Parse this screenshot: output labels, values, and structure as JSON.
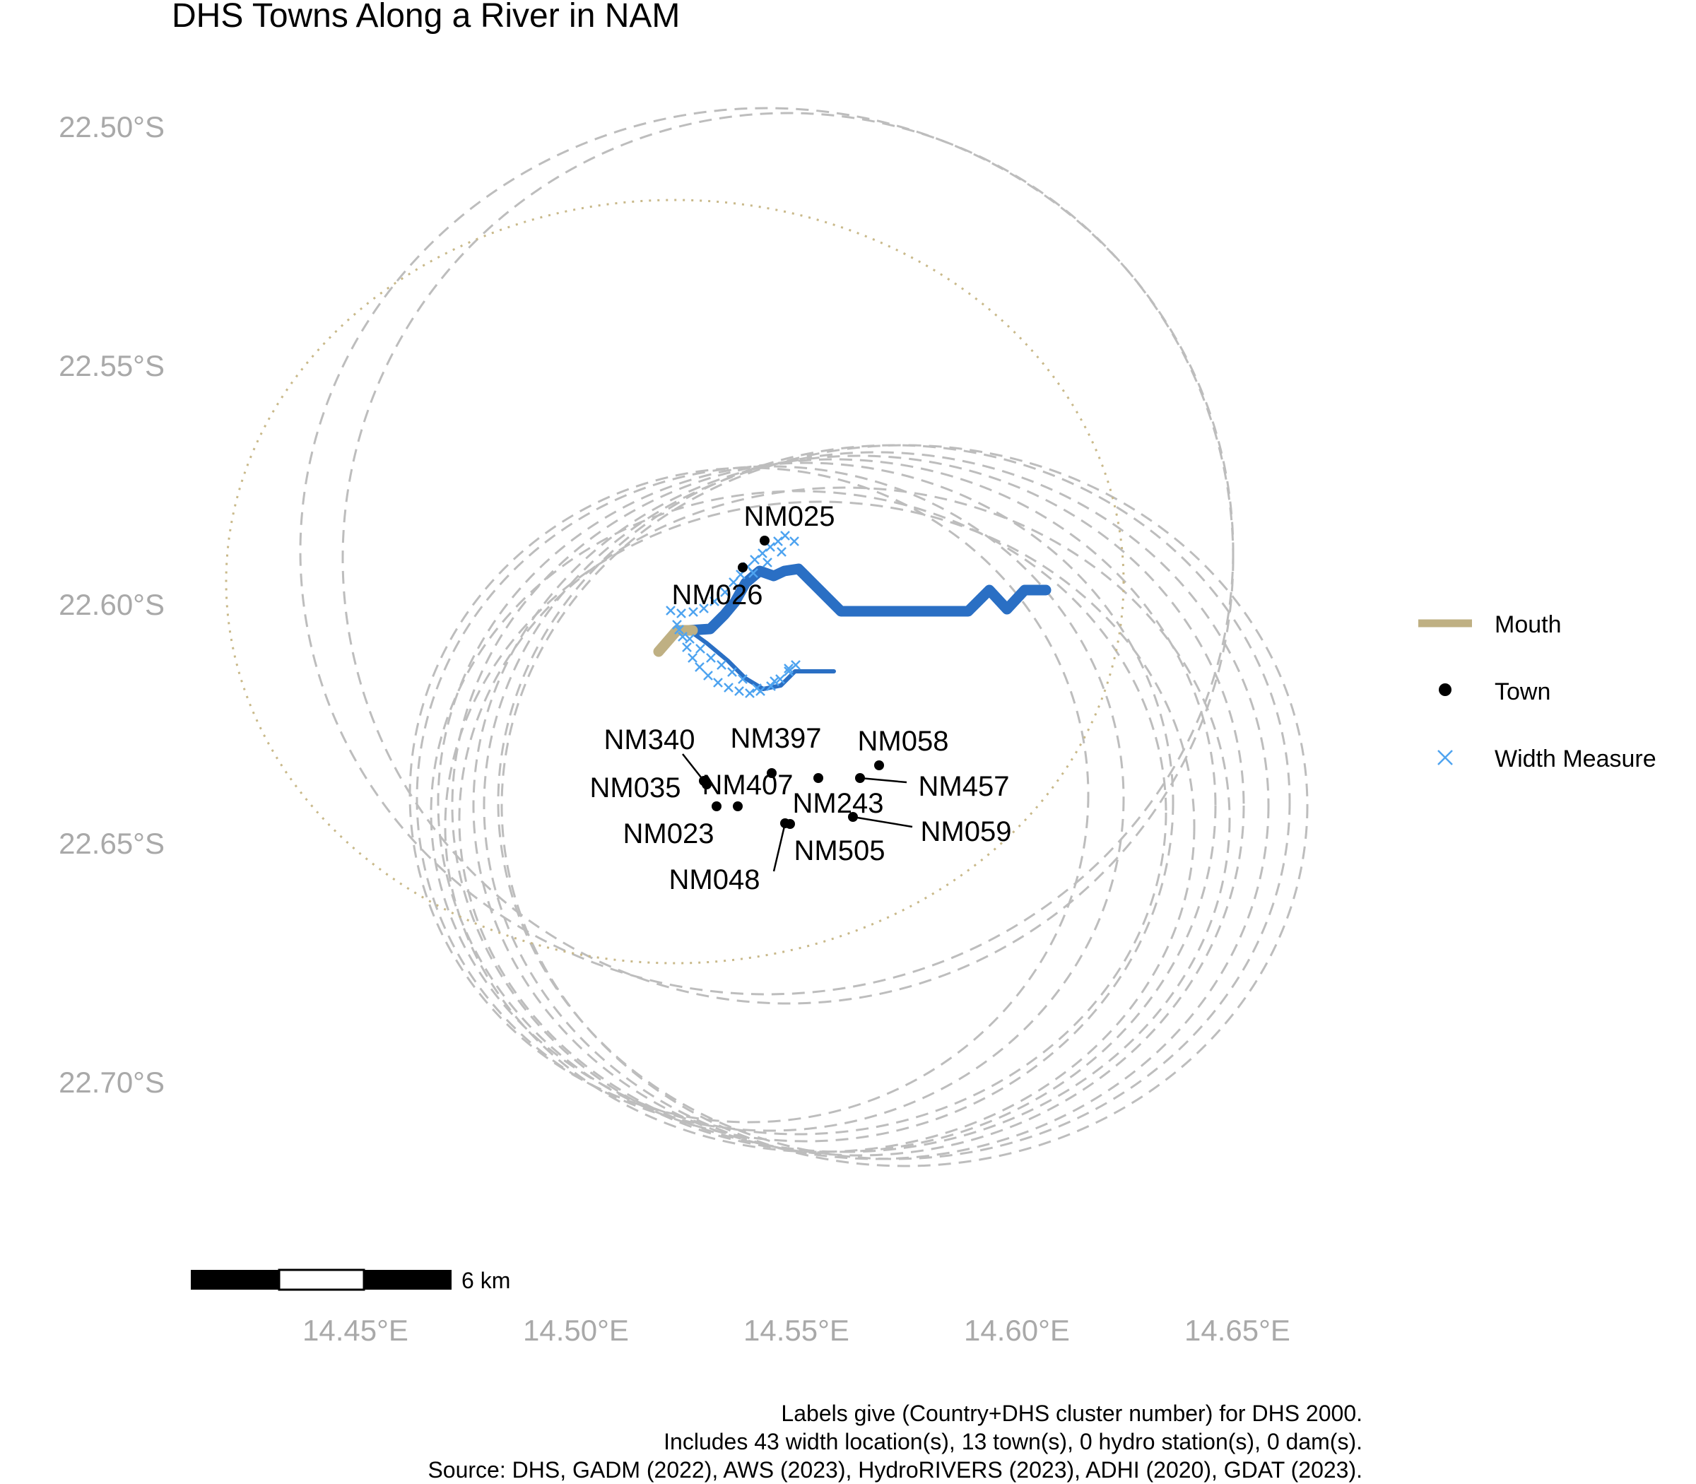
{
  "title": "DHS Towns Along a River in NAM",
  "axes": {
    "x_ticks": [
      "14.45°E",
      "14.50°E",
      "14.55°E",
      "14.60°E",
      "14.65°E"
    ],
    "y_ticks": [
      "22.50°S",
      "22.55°S",
      "22.60°S",
      "22.65°S",
      "22.70°S"
    ]
  },
  "legend": {
    "mouth": "Mouth",
    "town": "Town",
    "width": "Width Measure",
    "placement": "right"
  },
  "towns": [
    {
      "label": "NM025",
      "lon": 14.543,
      "lat": -22.586
    },
    {
      "label": "NM026",
      "lon": 14.538,
      "lat": -22.591
    },
    {
      "label": "NM340",
      "lon": 14.529,
      "lat": -22.636
    },
    {
      "label": "NM035",
      "lon": 14.528,
      "lat": -22.637
    },
    {
      "label": "NM023",
      "lon": 14.532,
      "lat": -22.642
    },
    {
      "label": "NM397",
      "lon": 14.545,
      "lat": -22.634
    },
    {
      "label": "NM407",
      "lon": 14.555,
      "lat": -22.635
    },
    {
      "label": "NM058",
      "lon": 14.568,
      "lat": -22.633
    },
    {
      "label": "NM457",
      "lon": 14.563,
      "lat": -22.635
    },
    {
      "label": "NM243",
      "lon": 14.564,
      "lat": -22.643
    },
    {
      "label": "NM059",
      "lon": 14.562,
      "lat": -22.643
    },
    {
      "label": "NM505",
      "lon": 14.547,
      "lat": -22.645
    },
    {
      "label": "NM048",
      "lon": 14.548,
      "lat": -22.645
    }
  ],
  "scale_bar": {
    "label": "6 km"
  },
  "caption": [
    "Labels give (Country+DHS cluster number) for DHS 2000.",
    "Includes 43 width location(s), 13 town(s), 0 hydro station(s), 0 dam(s).",
    "Source: DHS, GADM (2022), AWS (2023), HydroRIVERS (2023), ADHI (2020), GDAT (2023)."
  ],
  "colors": {
    "river": "#2a6fc4",
    "mouth": "#bfb083",
    "width_marker": "#4ea3f0",
    "buffer": "#bdbdbd",
    "mouth_buffer": "#c9b98a",
    "axis_text": "#a9a9a9"
  }
}
